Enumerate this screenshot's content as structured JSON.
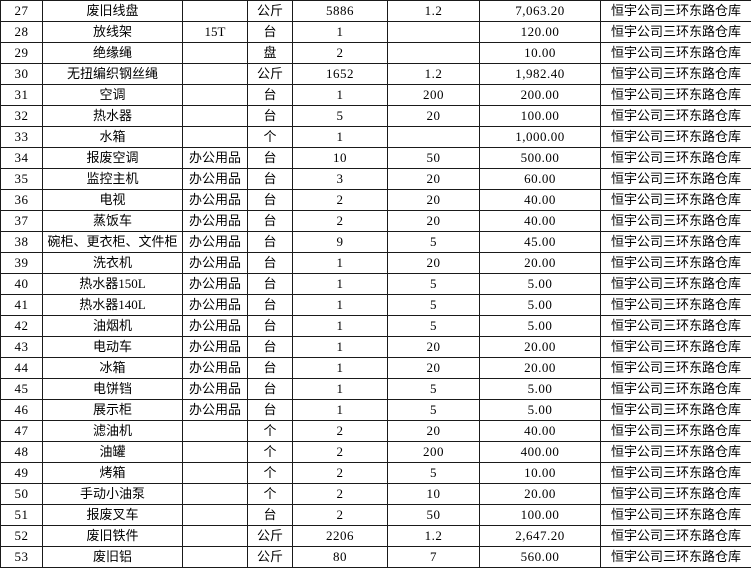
{
  "colors": {
    "background": "#ffffff",
    "grid_border": "#1a1a1a",
    "text": "#000000"
  },
  "table": {
    "column_keys": [
      "no",
      "name",
      "spec",
      "unit",
      "qty",
      "price",
      "total",
      "location"
    ],
    "rows": [
      {
        "no": "27",
        "name": "废旧线盘",
        "spec": "",
        "unit": "公斤",
        "qty": "5886",
        "price": "1.2",
        "total": "7,063.20",
        "location": "恒宇公司三环东路仓库"
      },
      {
        "no": "28",
        "name": "放线架",
        "spec": "15T",
        "unit": "台",
        "qty": "1",
        "price": "",
        "total": "120.00",
        "location": "恒宇公司三环东路仓库"
      },
      {
        "no": "29",
        "name": "绝缘绳",
        "spec": "",
        "unit": "盘",
        "qty": "2",
        "price": "",
        "total": "10.00",
        "location": "恒宇公司三环东路仓库"
      },
      {
        "no": "30",
        "name": "无扭编织钢丝绳",
        "spec": "",
        "unit": "公斤",
        "qty": "1652",
        "price": "1.2",
        "total": "1,982.40",
        "location": "恒宇公司三环东路仓库"
      },
      {
        "no": "31",
        "name": "空调",
        "spec": "",
        "unit": "台",
        "qty": "1",
        "price": "200",
        "total": "200.00",
        "location": "恒宇公司三环东路仓库"
      },
      {
        "no": "32",
        "name": "热水器",
        "spec": "",
        "unit": "台",
        "qty": "5",
        "price": "20",
        "total": "100.00",
        "location": "恒宇公司三环东路仓库"
      },
      {
        "no": "33",
        "name": "水箱",
        "spec": "",
        "unit": "个",
        "qty": "1",
        "price": "",
        "total": "1,000.00",
        "location": "恒宇公司三环东路仓库"
      },
      {
        "no": "34",
        "name": "报废空调",
        "spec": "办公用品",
        "unit": "台",
        "qty": "10",
        "price": "50",
        "total": "500.00",
        "location": "恒宇公司三环东路仓库"
      },
      {
        "no": "35",
        "name": "监控主机",
        "spec": "办公用品",
        "unit": "台",
        "qty": "3",
        "price": "20",
        "total": "60.00",
        "location": "恒宇公司三环东路仓库"
      },
      {
        "no": "36",
        "name": "电视",
        "spec": "办公用品",
        "unit": "台",
        "qty": "2",
        "price": "20",
        "total": "40.00",
        "location": "恒宇公司三环东路仓库"
      },
      {
        "no": "37",
        "name": "蒸饭车",
        "spec": "办公用品",
        "unit": "台",
        "qty": "2",
        "price": "20",
        "total": "40.00",
        "location": "恒宇公司三环东路仓库"
      },
      {
        "no": "38",
        "name": "碗柜、更衣柜、文件柜",
        "spec": "办公用品",
        "unit": "台",
        "qty": "9",
        "price": "5",
        "total": "45.00",
        "location": "恒宇公司三环东路仓库"
      },
      {
        "no": "39",
        "name": "洗衣机",
        "spec": "办公用品",
        "unit": "台",
        "qty": "1",
        "price": "20",
        "total": "20.00",
        "location": "恒宇公司三环东路仓库"
      },
      {
        "no": "40",
        "name": "热水器150L",
        "spec": "办公用品",
        "unit": "台",
        "qty": "1",
        "price": "5",
        "total": "5.00",
        "location": "恒宇公司三环东路仓库"
      },
      {
        "no": "41",
        "name": "热水器140L",
        "spec": "办公用品",
        "unit": "台",
        "qty": "1",
        "price": "5",
        "total": "5.00",
        "location": "恒宇公司三环东路仓库"
      },
      {
        "no": "42",
        "name": "油烟机",
        "spec": "办公用品",
        "unit": "台",
        "qty": "1",
        "price": "5",
        "total": "5.00",
        "location": "恒宇公司三环东路仓库"
      },
      {
        "no": "43",
        "name": "电动车",
        "spec": "办公用品",
        "unit": "台",
        "qty": "1",
        "price": "20",
        "total": "20.00",
        "location": "恒宇公司三环东路仓库"
      },
      {
        "no": "44",
        "name": "冰箱",
        "spec": "办公用品",
        "unit": "台",
        "qty": "1",
        "price": "20",
        "total": "20.00",
        "location": "恒宇公司三环东路仓库"
      },
      {
        "no": "45",
        "name": "电饼铛",
        "spec": "办公用品",
        "unit": "台",
        "qty": "1",
        "price": "5",
        "total": "5.00",
        "location": "恒宇公司三环东路仓库"
      },
      {
        "no": "46",
        "name": "展示柜",
        "spec": "办公用品",
        "unit": "台",
        "qty": "1",
        "price": "5",
        "total": "5.00",
        "location": "恒宇公司三环东路仓库"
      },
      {
        "no": "47",
        "name": "滤油机",
        "spec": "",
        "unit": "个",
        "qty": "2",
        "price": "20",
        "total": "40.00",
        "location": "恒宇公司三环东路仓库"
      },
      {
        "no": "48",
        "name": "油罐",
        "spec": "",
        "unit": "个",
        "qty": "2",
        "price": "200",
        "total": "400.00",
        "location": "恒宇公司三环东路仓库"
      },
      {
        "no": "49",
        "name": "烤箱",
        "spec": "",
        "unit": "个",
        "qty": "2",
        "price": "5",
        "total": "10.00",
        "location": "恒宇公司三环东路仓库"
      },
      {
        "no": "50",
        "name": "手动小油泵",
        "spec": "",
        "unit": "个",
        "qty": "2",
        "price": "10",
        "total": "20.00",
        "location": "恒宇公司三环东路仓库"
      },
      {
        "no": "51",
        "name": "报废叉车",
        "spec": "",
        "unit": "台",
        "qty": "2",
        "price": "50",
        "total": "100.00",
        "location": "恒宇公司三环东路仓库"
      },
      {
        "no": "52",
        "name": "废旧铁件",
        "spec": "",
        "unit": "公斤",
        "qty": "2206",
        "price": "1.2",
        "total": "2,647.20",
        "location": "恒宇公司三环东路仓库"
      },
      {
        "no": "53",
        "name": "废旧铝",
        "spec": "",
        "unit": "公斤",
        "qty": "80",
        "price": "7",
        "total": "560.00",
        "location": "恒宇公司三环东路仓库"
      }
    ]
  }
}
